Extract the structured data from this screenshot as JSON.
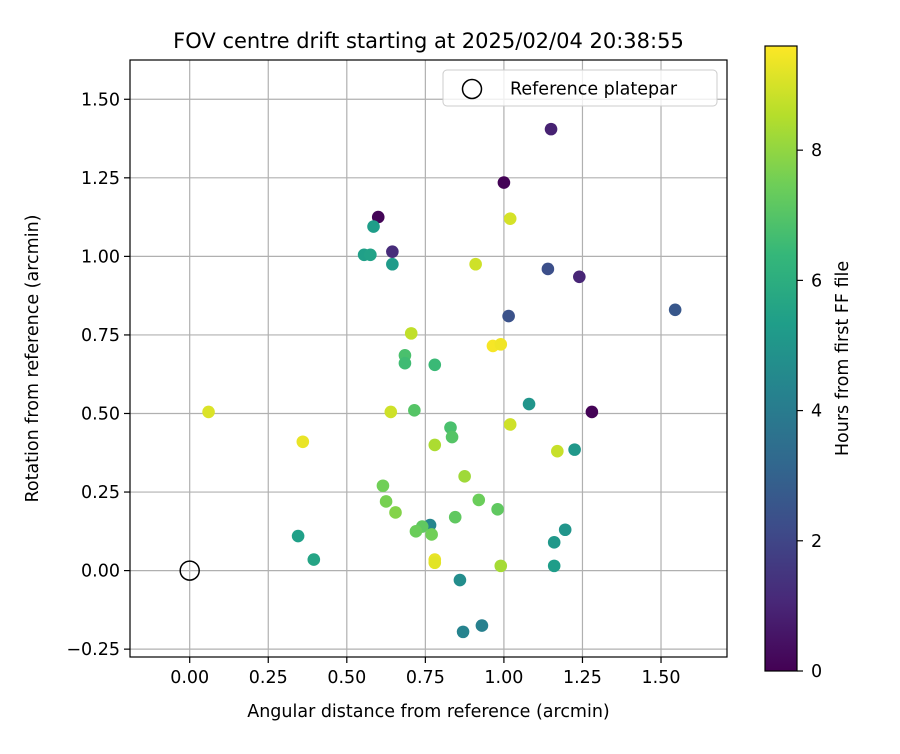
{
  "chart_data": {
    "type": "scatter",
    "title": "FOV centre drift starting at 2025/02/04 20:38:55",
    "xlabel": "Angular distance from reference (arcmin)",
    "ylabel": "Rotation from reference (arcmin)",
    "xlim": [
      -0.19,
      1.71
    ],
    "ylim": [
      -0.275,
      1.625
    ],
    "xticks": [
      0.0,
      0.25,
      0.5,
      0.75,
      1.0,
      1.25,
      1.5
    ],
    "xtick_labels": [
      "0.00",
      "0.25",
      "0.50",
      "0.75",
      "1.00",
      "1.25",
      "1.50"
    ],
    "yticks": [
      -0.25,
      0.0,
      0.25,
      0.5,
      0.75,
      1.0,
      1.25,
      1.5
    ],
    "ytick_labels": [
      "−0.25",
      "0.00",
      "0.25",
      "0.50",
      "0.75",
      "1.00",
      "1.25",
      "1.50"
    ],
    "grid": true,
    "legend": {
      "placement": "top-right",
      "entries": [
        "Reference platepar"
      ]
    },
    "reference_point": {
      "x": 0.0,
      "y": 0.0,
      "name": "Reference platepar"
    },
    "colorbar": {
      "label": "Hours from first FF file",
      "range": [
        0,
        9.6
      ],
      "ticks": [
        0,
        2,
        4,
        6,
        8
      ],
      "tick_labels": [
        "0",
        "2",
        "4",
        "6",
        "8"
      ],
      "colormap": "viridis",
      "colormap_stops": [
        "#440154",
        "#482878",
        "#3e4a89",
        "#31688e",
        "#26828e",
        "#1f9e89",
        "#35b779",
        "#6ece58",
        "#b5de2b",
        "#fde725"
      ]
    },
    "points": [
      {
        "x": 0.06,
        "y": 0.505,
        "hours": 9.1
      },
      {
        "x": 0.36,
        "y": 0.41,
        "hours": 9.3
      },
      {
        "x": 0.345,
        "y": 0.11,
        "hours": 5.4
      },
      {
        "x": 0.395,
        "y": 0.035,
        "hours": 5.6
      },
      {
        "x": 0.6,
        "y": 1.125,
        "hours": 0.1
      },
      {
        "x": 0.585,
        "y": 1.095,
        "hours": 5.3
      },
      {
        "x": 0.555,
        "y": 1.005,
        "hours": 5.4
      },
      {
        "x": 0.575,
        "y": 1.005,
        "hours": 5.5
      },
      {
        "x": 0.645,
        "y": 1.015,
        "hours": 1.2
      },
      {
        "x": 0.645,
        "y": 0.975,
        "hours": 5.2
      },
      {
        "x": 0.705,
        "y": 0.755,
        "hours": 8.7
      },
      {
        "x": 0.685,
        "y": 0.685,
        "hours": 6.8
      },
      {
        "x": 0.685,
        "y": 0.66,
        "hours": 6.6
      },
      {
        "x": 0.78,
        "y": 0.655,
        "hours": 6.5
      },
      {
        "x": 0.64,
        "y": 0.505,
        "hours": 8.9
      },
      {
        "x": 0.715,
        "y": 0.51,
        "hours": 7.0
      },
      {
        "x": 0.83,
        "y": 0.455,
        "hours": 6.8
      },
      {
        "x": 0.835,
        "y": 0.425,
        "hours": 7.0
      },
      {
        "x": 0.78,
        "y": 0.4,
        "hours": 8.4
      },
      {
        "x": 0.875,
        "y": 0.3,
        "hours": 8.2
      },
      {
        "x": 0.615,
        "y": 0.27,
        "hours": 7.5
      },
      {
        "x": 0.625,
        "y": 0.22,
        "hours": 7.6
      },
      {
        "x": 0.655,
        "y": 0.185,
        "hours": 7.8
      },
      {
        "x": 0.765,
        "y": 0.145,
        "hours": 4.4
      },
      {
        "x": 0.74,
        "y": 0.14,
        "hours": 7.2
      },
      {
        "x": 0.72,
        "y": 0.125,
        "hours": 7.4
      },
      {
        "x": 0.77,
        "y": 0.115,
        "hours": 7.5
      },
      {
        "x": 0.845,
        "y": 0.17,
        "hours": 7.2
      },
      {
        "x": 0.92,
        "y": 0.225,
        "hours": 7.4
      },
      {
        "x": 0.98,
        "y": 0.195,
        "hours": 7.2
      },
      {
        "x": 0.78,
        "y": 0.035,
        "hours": 9.3
      },
      {
        "x": 0.78,
        "y": 0.025,
        "hours": 9.2
      },
      {
        "x": 0.86,
        "y": -0.03,
        "hours": 4.7
      },
      {
        "x": 0.87,
        "y": -0.195,
        "hours": 4.3
      },
      {
        "x": 0.93,
        "y": -0.175,
        "hours": 4.2
      },
      {
        "x": 0.99,
        "y": 0.015,
        "hours": 8.3
      },
      {
        "x": 0.91,
        "y": 0.975,
        "hours": 8.9
      },
      {
        "x": 1.02,
        "y": 1.12,
        "hours": 9.0
      },
      {
        "x": 1.0,
        "y": 1.235,
        "hours": 0.05
      },
      {
        "x": 1.15,
        "y": 1.405,
        "hours": 0.9
      },
      {
        "x": 1.14,
        "y": 0.96,
        "hours": 2.3
      },
      {
        "x": 1.24,
        "y": 0.935,
        "hours": 1.0
      },
      {
        "x": 1.015,
        "y": 0.81,
        "hours": 2.4
      },
      {
        "x": 1.545,
        "y": 0.83,
        "hours": 2.6
      },
      {
        "x": 0.965,
        "y": 0.715,
        "hours": 9.5
      },
      {
        "x": 0.99,
        "y": 0.72,
        "hours": 9.4
      },
      {
        "x": 1.02,
        "y": 0.465,
        "hours": 8.9
      },
      {
        "x": 1.08,
        "y": 0.53,
        "hours": 5.0
      },
      {
        "x": 1.28,
        "y": 0.505,
        "hours": 0.05
      },
      {
        "x": 1.225,
        "y": 0.385,
        "hours": 5.1
      },
      {
        "x": 1.17,
        "y": 0.38,
        "hours": 8.8
      },
      {
        "x": 1.195,
        "y": 0.13,
        "hours": 5.0
      },
      {
        "x": 1.16,
        "y": 0.09,
        "hours": 5.1
      },
      {
        "x": 1.16,
        "y": 0.015,
        "hours": 5.3
      }
    ]
  }
}
